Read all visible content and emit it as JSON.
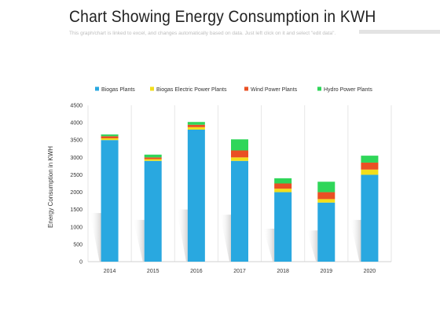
{
  "header": {
    "title": "Chart Showing Energy Consumption in KWH",
    "subtitle": "This graph/chart is linked to excel, and changes automatically  based on data. Just left click on it and select \"edit data\"."
  },
  "chart_data": {
    "type": "bar",
    "stacked": true,
    "title": "Chart Showing Energy Consumption in KWH",
    "xlabel": "",
    "ylabel": "Energy Consumption in KWH",
    "categories": [
      "2014",
      "2015",
      "2016",
      "2017",
      "2018",
      "2019",
      "2020"
    ],
    "ylim": [
      0,
      4500
    ],
    "yticks": [
      0,
      500,
      1000,
      1500,
      2000,
      2500,
      3000,
      3500,
      4000,
      4500
    ],
    "grid": "vertical",
    "legend_position": "top",
    "series": [
      {
        "name": "Biogas Plants",
        "color": "#29a8e0",
        "values": [
          3500,
          2900,
          3800,
          2900,
          2000,
          1700,
          2500
        ]
      },
      {
        "name": "Biogas Electric Power Plants",
        "color": "#f2de1b",
        "values": [
          50,
          50,
          70,
          100,
          100,
          100,
          150
        ]
      },
      {
        "name": "Wind Power Plants",
        "color": "#ea5024",
        "values": [
          60,
          50,
          70,
          200,
          150,
          200,
          200
        ]
      },
      {
        "name": "Hydro Power Plants",
        "color": "#2fd659",
        "values": [
          50,
          80,
          80,
          320,
          150,
          300,
          200
        ]
      }
    ],
    "shadow_values": [
      1400,
      1200,
      1500,
      1350,
      950,
      900,
      1200
    ]
  }
}
